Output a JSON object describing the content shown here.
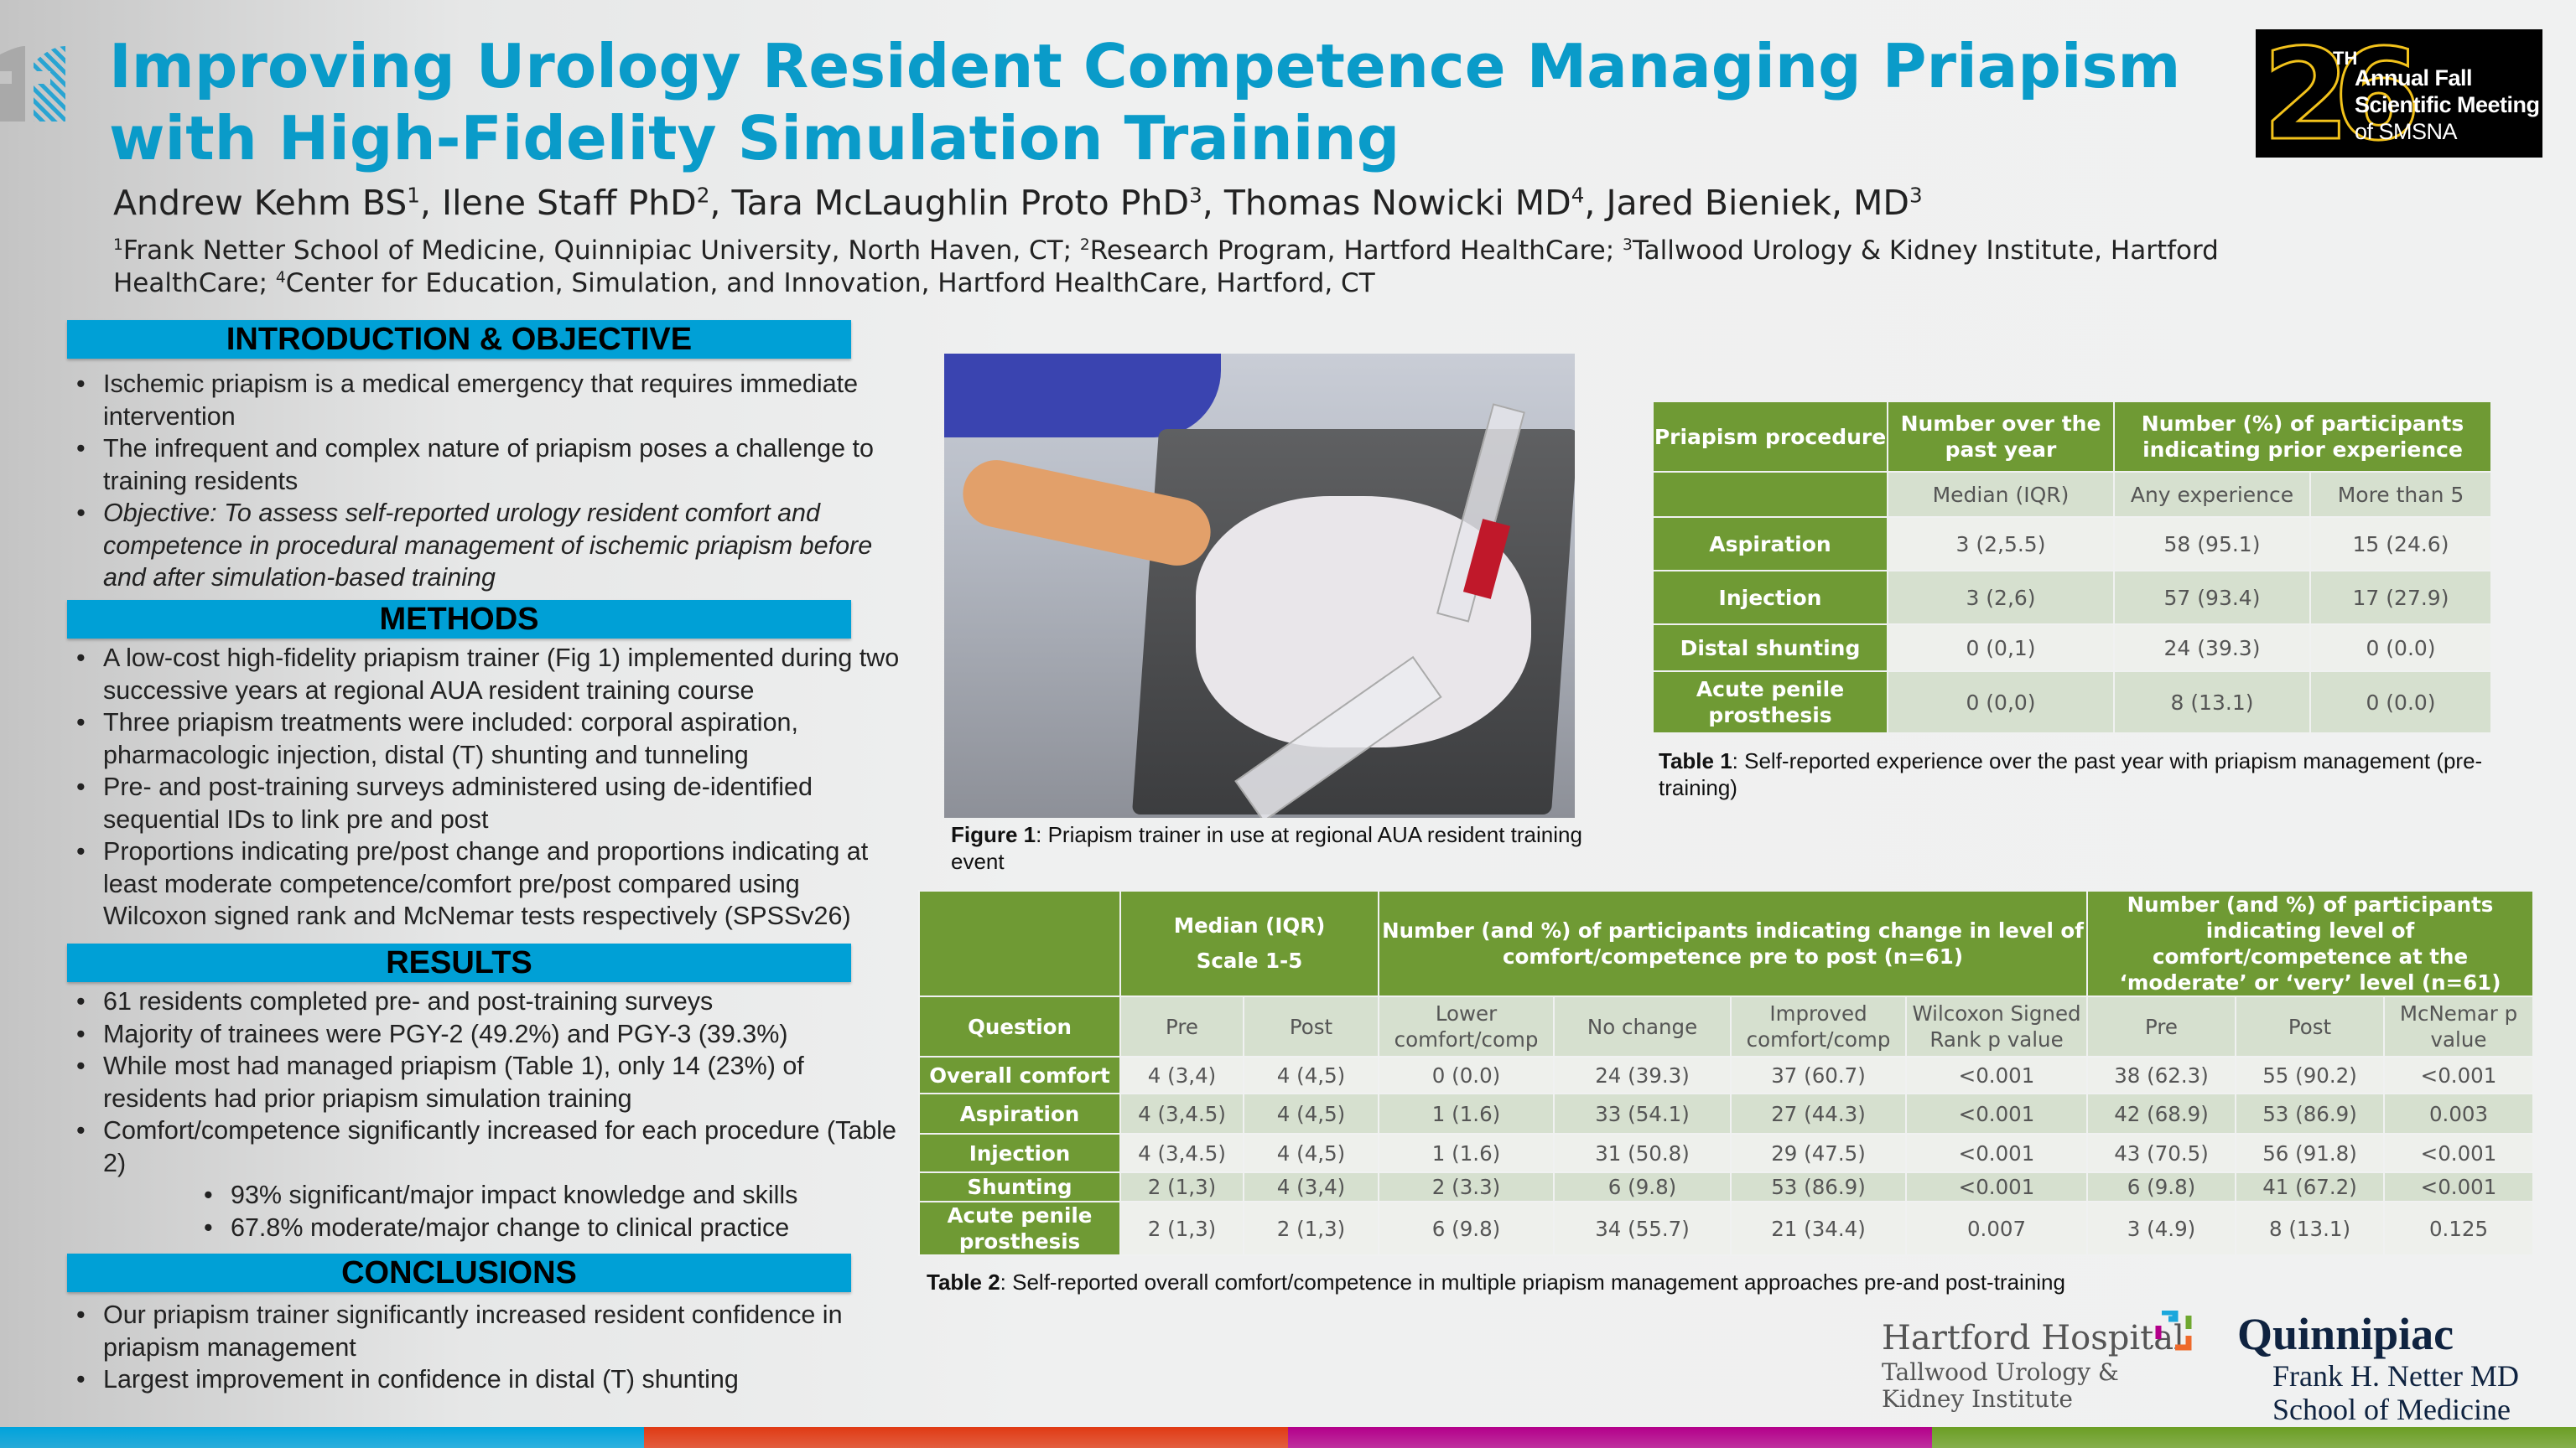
{
  "header": {
    "title_line1": "Improving Urology Resident Competence Managing Priapism",
    "title_line2": "with High-Fidelity Simulation Training",
    "authors": [
      {
        "name": "Andrew Kehm BS",
        "sup": "1",
        "sep": ", "
      },
      {
        "name": "Ilene Staff PhD",
        "sup": "2",
        "sep": ", "
      },
      {
        "name": "Tara McLaughlin Proto PhD",
        "sup": "3",
        "sep": ", "
      },
      {
        "name": "Thomas Nowicki MD",
        "sup": "4",
        "sep": ", "
      },
      {
        "name": "Jared Bieniek, MD",
        "sup": "3",
        "sep": ""
      }
    ],
    "affiliations": [
      {
        "sup": "1",
        "text": "Frank Netter School of Medicine, Quinnipiac University, North Haven, CT; "
      },
      {
        "sup": "2",
        "text": "Research Program, Hartford HealthCare; "
      },
      {
        "sup": "3",
        "text": "Tallwood Urology & Kidney Institute, Hartford HealthCare; "
      },
      {
        "sup": "4",
        "text": "Center for Education, Simulation, and Innovation, Hartford HealthCare, Hartford, CT"
      }
    ]
  },
  "meeting_logo": {
    "number": "26",
    "suffix": "TH",
    "line1": "Annual Fall",
    "line2": "Scientific Meeting",
    "line3": "of SMSNA",
    "gold": "#f2c21b"
  },
  "sections": {
    "intro": {
      "heading": "INTRODUCTION & OBJECTIVE",
      "bullets": [
        {
          "text": "Ischemic priapism is a medical emergency that requires immediate intervention"
        },
        {
          "text": "The infrequent and complex nature of priapism poses a challenge to training residents"
        },
        {
          "text": "Objective: To assess self-reported urology resident comfort and competence in procedural management of ischemic priapism before and after simulation-based training",
          "italic": true
        }
      ]
    },
    "methods": {
      "heading": "METHODS",
      "bullets": [
        {
          "text": "A low-cost high-fidelity priapism trainer (Fig 1) implemented during two successive years at regional AUA resident training course"
        },
        {
          "text": "Three priapism treatments were included: corporal aspiration, pharmacologic injection, distal (T) shunting and tunneling"
        },
        {
          "text": "Pre- and post-training surveys administered using de-identified sequential IDs to link pre and post"
        },
        {
          "text": "Proportions indicating pre/post change and proportions indicating at least moderate competence/comfort pre/post compared using Wilcoxon signed rank and McNemar tests respectively (SPSSv26)"
        }
      ]
    },
    "results": {
      "heading": "RESULTS",
      "bullets": [
        {
          "text": "61 residents completed pre- and post-training surveys"
        },
        {
          "text": "Majority of trainees were PGY-2 (49.2%) and PGY-3 (39.3%)"
        },
        {
          "text": "While most had managed priapism (Table 1), only 14 (23%) of residents had prior priapism simulation training"
        },
        {
          "text": "Comfort/competence significantly increased for each procedure (Table 2)"
        },
        {
          "text": "93% significant/major impact knowledge and skills",
          "sub": true
        },
        {
          "text": "67.8% moderate/major change to clinical practice",
          "sub": true
        }
      ]
    },
    "conclusions": {
      "heading": "CONCLUSIONS",
      "bullets": [
        {
          "text": "Our priapism trainer significantly increased resident confidence in priapism management"
        },
        {
          "text": "Largest improvement in confidence in distal (T) shunting"
        }
      ]
    }
  },
  "figure1": {
    "label": "Figure 1",
    "caption": ": Priapism trainer in use at regional AUA resident training event"
  },
  "table1": {
    "header": [
      "Priapism procedure",
      "Number over the past year",
      "Number (%) of participants indicating prior experience"
    ],
    "subheader": [
      "",
      "Median (IQR)",
      "Any experience",
      "More than 5"
    ],
    "rows": [
      [
        "Aspiration",
        "3 (2,5.5)",
        "58 (95.1)",
        "15 (24.6)"
      ],
      [
        "Injection",
        "3 (2,6)",
        "57 (93.4)",
        "17 (27.9)"
      ],
      [
        "Distal shunting",
        "0 (0,1)",
        "24 (39.3)",
        "0 (0.0)"
      ],
      [
        "Acute penile prosthesis",
        "0 (0,0)",
        "8 (13.1)",
        "0 (0.0)"
      ]
    ],
    "caption_label": "Table 1",
    "caption": ":  Self-reported experience over the past year with priapism management (pre-training)"
  },
  "table2": {
    "header": [
      "",
      "Median (IQR)\nScale 1-5",
      "Number (and %) of participants indicating change in level of comfort/competence pre to post (n=61)",
      "Number (and %) of participants indicating level of comfort/competence at the ‘moderate’ or ‘very’ level (n=61)"
    ],
    "subheader": [
      "Question",
      "Pre",
      "Post",
      "Lower comfort/comp",
      "No change",
      "Improved comfort/comp",
      "Wilcoxon Signed Rank p value",
      "Pre",
      "Post",
      "McNemar p value"
    ],
    "rows": [
      [
        "Overall comfort",
        "4 (3,4)",
        "4 (4,5)",
        "0 (0.0)",
        "24 (39.3)",
        "37 (60.7)",
        "<0.001",
        "38 (62.3)",
        "55 (90.2)",
        "<0.001"
      ],
      [
        "Aspiration",
        "4 (3,4.5)",
        "4 (4,5)",
        "1 (1.6)",
        "33 (54.1)",
        "27 (44.3)",
        "<0.001",
        "42 (68.9)",
        "53 (86.9)",
        "0.003"
      ],
      [
        "Injection",
        "4 (3,4.5)",
        "4 (4,5)",
        "1 (1.6)",
        "31 (50.8)",
        "29 (47.5)",
        "<0.001",
        "43 (70.5)",
        "56 (91.8)",
        "<0.001"
      ],
      [
        "Shunting",
        "2 (1,3)",
        "4 (3,4)",
        "2 (3.3)",
        "6 (9.8)",
        "53 (86.9)",
        "<0.001",
        "6 (9.8)",
        "41 (67.2)",
        "<0.001"
      ],
      [
        "Acute penile prosthesis",
        "2 (1,3)",
        "2 (1,3)",
        "6 (9.8)",
        "34 (55.7)",
        "21 (34.4)",
        "0.007",
        "3 (4.9)",
        "8 (13.1)",
        "0.125"
      ]
    ],
    "caption_label": "Table 2",
    "caption": ": Self-reported overall comfort/competence in multiple priapism management approaches pre-and post-training"
  },
  "logos": {
    "hartford": {
      "line1": "Hartford Hospital",
      "line2": "Tallwood Urology &",
      "line3": "Kidney Institute"
    },
    "quinnipiac": {
      "line1": "Quinnipiac",
      "line2": "Frank H. Netter MD",
      "line3": "School of Medicine"
    }
  },
  "colors": {
    "title": "#0a9bc9",
    "section_header": "#00a0d6",
    "table_green": "#6f9a34",
    "bar": [
      "#00a3dc",
      "#e03a14",
      "#b3008a",
      "#6b9e24"
    ]
  }
}
